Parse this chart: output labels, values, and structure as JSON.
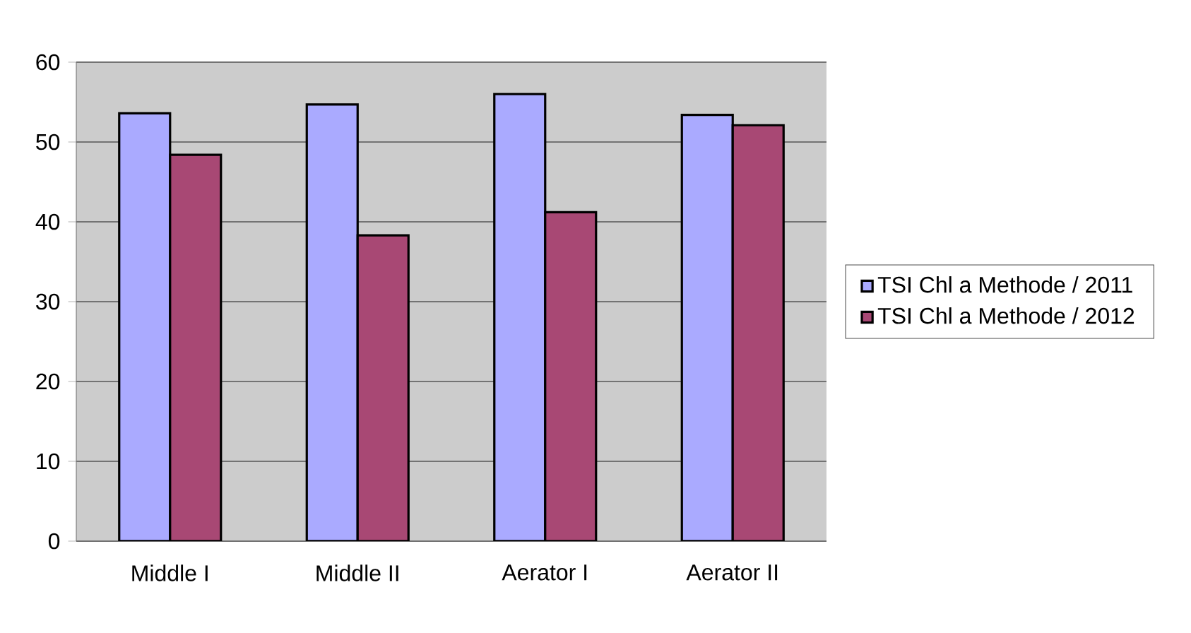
{
  "chart_data": {
    "type": "bar",
    "categories": [
      "Middle I",
      "Middle II",
      "Aerator I",
      "Aerator II"
    ],
    "series": [
      {
        "name": "TSI Chl a Methode / 2011",
        "color": "#aaaaff",
        "values": [
          53.6,
          54.7,
          56.0,
          53.4
        ]
      },
      {
        "name": "TSI Chl a Methode / 2012",
        "color": "#a84874",
        "values": [
          48.4,
          38.3,
          41.2,
          52.1
        ]
      }
    ],
    "ylim": [
      0,
      60
    ],
    "yticks": [
      0,
      10,
      20,
      30,
      40,
      50,
      60
    ],
    "grid": "y",
    "legend": "right"
  }
}
